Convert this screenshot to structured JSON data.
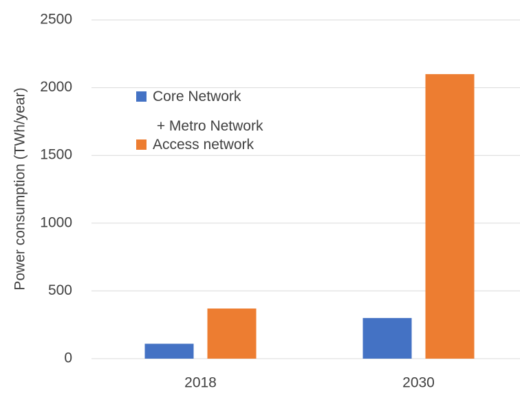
{
  "chart_data": {
    "type": "bar",
    "y_label": "Power consumption (TWh/year)",
    "categories": [
      "2018",
      "2030"
    ],
    "series": [
      {
        "name": "Core Network\n + Metro Network",
        "color": "#4472c4",
        "values": [
          110,
          300
        ]
      },
      {
        "name": "Access network",
        "color": "#ed7d31",
        "values": [
          370,
          2100
        ]
      }
    ],
    "ylim": [
      0,
      2500
    ],
    "yticks": [
      0,
      500,
      1000,
      1500,
      2000,
      2500
    ],
    "grid": true
  }
}
